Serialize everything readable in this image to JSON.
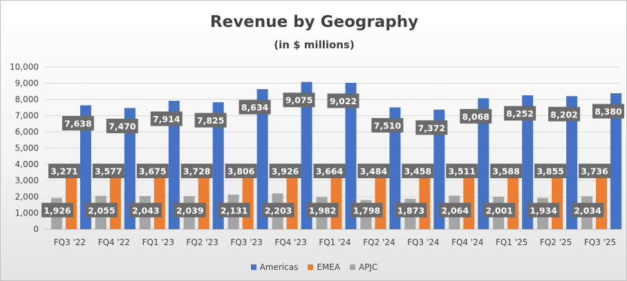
{
  "chart_data": {
    "type": "bar",
    "title": "Revenue by Geography",
    "subtitle": "(in $ millions)",
    "xlabel": "",
    "ylabel": "",
    "ylim": [
      0,
      10000
    ],
    "yticks": [
      "0",
      "1,000",
      "2,000",
      "3,000",
      "4,000",
      "5,000",
      "6,000",
      "7,000",
      "8,000",
      "9,000",
      "10,000"
    ],
    "ytick_values": [
      0,
      1000,
      2000,
      3000,
      4000,
      5000,
      6000,
      7000,
      8000,
      9000,
      10000
    ],
    "grid": true,
    "legend_position": "bottom",
    "categories": [
      "FQ3 '22",
      "FQ4 '22",
      "FQ1 '23",
      "FQ2 '23",
      "FQ3 '23",
      "FQ4 '23",
      "FQ1 '24",
      "FQ2 '24",
      "FQ3 '24",
      "FQ4 '24",
      "FQ1 '25",
      "FQ2 '25",
      "FQ3 '25"
    ],
    "series": [
      {
        "name": "APJC",
        "color": "#a5a5a5",
        "values": [
          1926,
          2055,
          2043,
          2039,
          2131,
          2203,
          1982,
          1798,
          1873,
          2064,
          2001,
          1934,
          2034
        ],
        "labels": [
          "1,926",
          "2,055",
          "2,043",
          "2,039",
          "2,131",
          "2,203",
          "1,982",
          "1,798",
          "1,873",
          "2,064",
          "2,001",
          "1,934",
          "2,034"
        ]
      },
      {
        "name": "EMEA",
        "color": "#ed7d31",
        "values": [
          3271,
          3577,
          3675,
          3728,
          3806,
          3926,
          3664,
          3484,
          3458,
          3511,
          3588,
          3855,
          3736
        ],
        "labels": [
          "3,271",
          "3,577",
          "3,675",
          "3,728",
          "3,806",
          "3,926",
          "3,664",
          "3,484",
          "3,458",
          "3,511",
          "3,588",
          "3,855",
          "3,736"
        ]
      },
      {
        "name": "Americas",
        "color": "#4472c4",
        "values": [
          7638,
          7470,
          7914,
          7825,
          8634,
          9075,
          9022,
          7510,
          7372,
          8068,
          8252,
          8202,
          8380
        ],
        "labels": [
          "7,638",
          "7,470",
          "7,914",
          "7,825",
          "8,634",
          "9,075",
          "9,022",
          "7,510",
          "7,372",
          "8,068",
          "8,252",
          "8,202",
          "8,380"
        ]
      }
    ],
    "legend_order": [
      "Americas",
      "EMEA",
      "APJC"
    ],
    "label_box_color": "#6b6b6b",
    "label_text_color": "#ffffff",
    "axis_text_color": "#404040",
    "grid_color": "#d9d9d9"
  }
}
